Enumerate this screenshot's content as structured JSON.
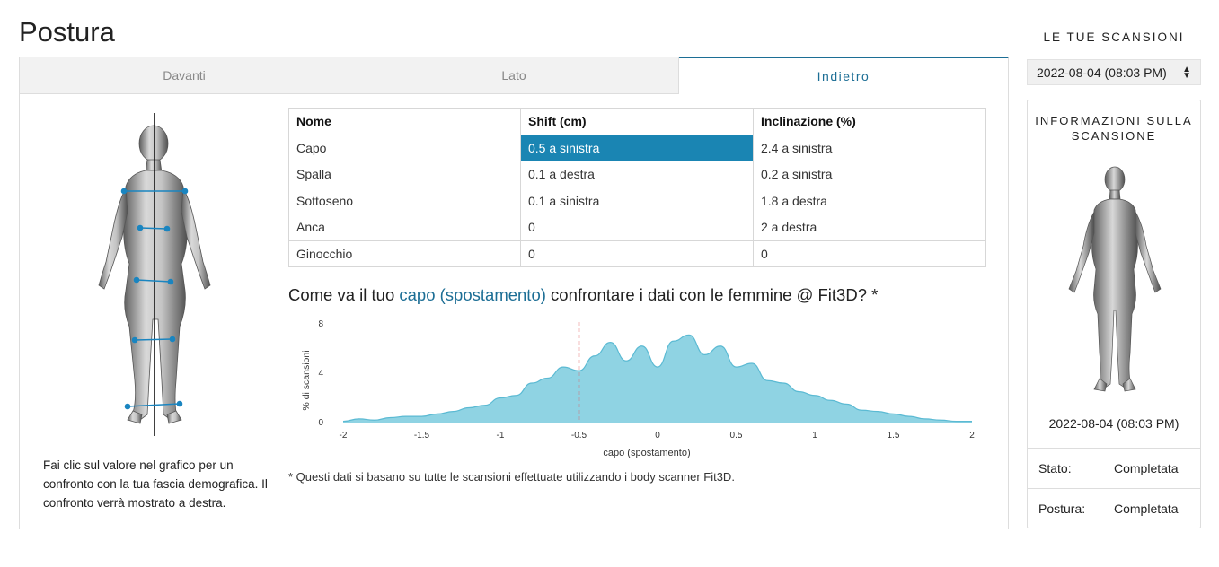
{
  "page_title": "Postura",
  "tabs": [
    {
      "label": "Davanti",
      "active": false
    },
    {
      "label": "Lato",
      "active": false
    },
    {
      "label": "Indietro",
      "active": true
    }
  ],
  "table": {
    "headers": [
      "Nome",
      "Shift (cm)",
      "Inclinazione (%)"
    ],
    "rows": [
      [
        "Capo",
        "0.5 a sinistra",
        "2.4 a sinistra"
      ],
      [
        "Spalla",
        "0.1 a destra",
        "0.2 a sinistra"
      ],
      [
        "Sottoseno",
        "0.1 a sinistra",
        "1.8 a destra"
      ],
      [
        "Anca",
        "0",
        "2 a destra"
      ],
      [
        "Ginocchio",
        "0",
        "0"
      ]
    ],
    "selected_cell": "Capo / Shift (cm)"
  },
  "compare": {
    "prefix": "Come va il tuo",
    "metric": "capo (spostamento)",
    "suffix": "confrontare i dati con le femmine @ Fit3D? *"
  },
  "chart_data": {
    "type": "area",
    "xlabel": "capo (spostamento)",
    "ylabel": "% di scansioni",
    "xlim": [
      -2,
      2
    ],
    "ylim": [
      0,
      8
    ],
    "x_ticks": [
      "-2",
      "-1.5",
      "-1",
      "-0.5",
      "0",
      "0.5",
      "1",
      "1.5",
      "2"
    ],
    "y_ticks": [
      "0",
      "4",
      "8"
    ],
    "marker_x": -0.5,
    "x": [
      -2,
      -1.9,
      -1.8,
      -1.7,
      -1.6,
      -1.5,
      -1.4,
      -1.3,
      -1.2,
      -1.1,
      -1.0,
      -0.9,
      -0.8,
      -0.7,
      -0.6,
      -0.5,
      -0.4,
      -0.3,
      -0.2,
      -0.1,
      0.0,
      0.1,
      0.2,
      0.3,
      0.4,
      0.5,
      0.6,
      0.7,
      0.8,
      0.9,
      1.0,
      1.1,
      1.2,
      1.3,
      1.4,
      1.5,
      1.6,
      1.7,
      1.8,
      1.9,
      2.0
    ],
    "y": [
      0.1,
      0.3,
      0.2,
      0.4,
      0.5,
      0.5,
      0.7,
      0.9,
      1.2,
      1.4,
      2.0,
      2.2,
      3.2,
      3.6,
      4.5,
      4.2,
      5.4,
      6.5,
      5.0,
      6.2,
      4.5,
      6.6,
      7.1,
      5.5,
      6.2,
      4.5,
      4.8,
      3.4,
      3.2,
      2.5,
      2.2,
      1.8,
      1.5,
      1.0,
      0.9,
      0.7,
      0.5,
      0.3,
      0.2,
      0.1,
      0.1
    ],
    "fill_color": "#8fd3e3",
    "line_color": "#5bbad3",
    "marker_color": "#e05a5a"
  },
  "footnote": "* Questi dati si basano su tutte le scansioni effettuate utilizzando i body scanner Fit3D.",
  "hint": "Fai clic sul valore nel grafico per un confronto con la tua fascia demografica. Il confronto verrà mostrato a destra.",
  "sidebar": {
    "scans_title": "LE TUE SCANSIONI",
    "selected_scan": "2022-08-04 (08:03 PM)",
    "info_title": "INFORMAZIONI SULLA SCANSIONE",
    "scan_date": "2022-08-04 (08:03 PM)",
    "rows": [
      {
        "label": "Stato:",
        "value": "Completata"
      },
      {
        "label": "Postura:",
        "value": "Completata"
      }
    ]
  }
}
